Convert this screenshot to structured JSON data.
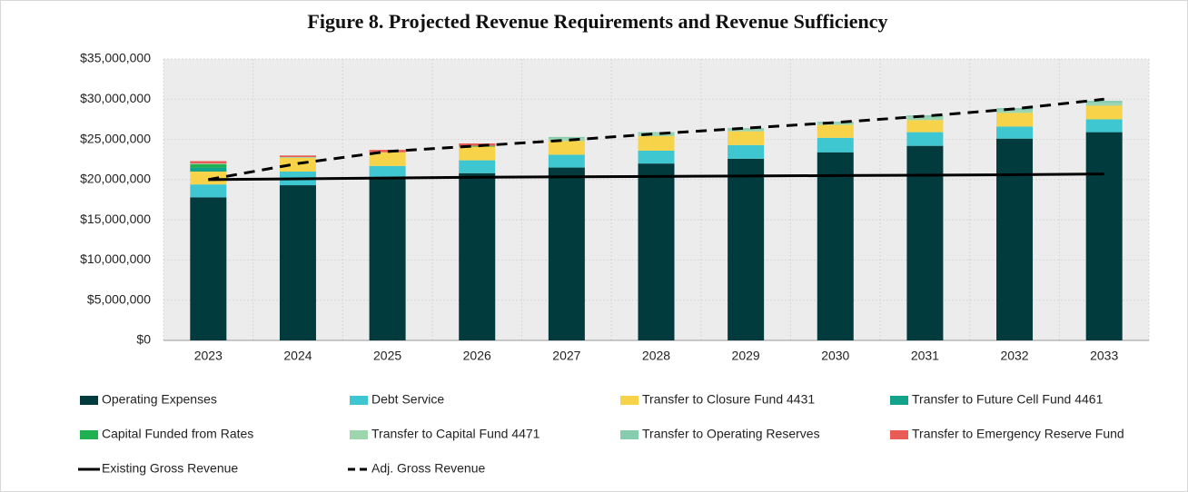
{
  "chart_data": {
    "type": "bar",
    "stacked": true,
    "title": "Figure 8. Projected Revenue Requirements and Revenue Sufficiency",
    "categories": [
      "2023",
      "2024",
      "2025",
      "2026",
      "2027",
      "2028",
      "2029",
      "2030",
      "2031",
      "2032",
      "2033"
    ],
    "ylim": [
      0,
      35000000
    ],
    "yticks": [
      {
        "value": 0,
        "label": "$0"
      },
      {
        "value": 5000000,
        "label": "$5,000,000"
      },
      {
        "value": 10000000,
        "label": "$10,000,000"
      },
      {
        "value": 15000000,
        "label": "$15,000,000"
      },
      {
        "value": 20000000,
        "label": "$20,000,000"
      },
      {
        "value": 25000000,
        "label": "$25,000,000"
      },
      {
        "value": 30000000,
        "label": "$30,000,000"
      },
      {
        "value": 35000000,
        "label": "$35,000,000"
      }
    ],
    "grid": true,
    "legend": "bottom",
    "series": [
      {
        "name": "Operating Expenses",
        "color": "#013b3e",
        "values": [
          17800000,
          19300000,
          20200000,
          20800000,
          21500000,
          22000000,
          22600000,
          23400000,
          24200000,
          25100000,
          25900000
        ]
      },
      {
        "name": "Debt Service",
        "color": "#3fc7d1",
        "values": [
          1600000,
          1700000,
          1500000,
          1600000,
          1600000,
          1600000,
          1700000,
          1800000,
          1700000,
          1500000,
          1600000
        ]
      },
      {
        "name": "Transfer to Closure Fund 4431",
        "color": "#f6d349",
        "values": [
          1600000,
          1700000,
          1700000,
          1700000,
          1700000,
          1800000,
          1700000,
          1600000,
          1500000,
          1700000,
          1700000
        ]
      },
      {
        "name": "Transfer to Future Cell Fund 4461",
        "color": "#12a38a",
        "values": [
          500000,
          0,
          0,
          0,
          0,
          0,
          0,
          0,
          0,
          0,
          0
        ]
      },
      {
        "name": "Capital Funded from Rates",
        "color": "#1fb04f",
        "values": [
          400000,
          0,
          0,
          100000,
          0,
          0,
          0,
          0,
          0,
          0,
          0
        ]
      },
      {
        "name": "Transfer to Capital Fund 4471",
        "color": "#9dd6ad",
        "values": [
          100000,
          100000,
          0,
          0,
          300000,
          300000,
          200000,
          200000,
          300000,
          300000,
          300000
        ]
      },
      {
        "name": "Transfer to Operating Reserves",
        "color": "#86cdb0",
        "values": [
          0,
          0,
          0,
          0,
          200000,
          200000,
          200000,
          200000,
          300000,
          300000,
          300000
        ]
      },
      {
        "name": "Transfer to Emergency Reserve Fund",
        "color": "#e85c55",
        "values": [
          300000,
          200000,
          300000,
          300000,
          0,
          0,
          0,
          0,
          0,
          0,
          0
        ]
      },
      {
        "name": "Existing Gross Revenue",
        "type": "line",
        "color": "#000000",
        "dashed": false,
        "values": [
          20000000,
          20100000,
          20200000,
          20300000,
          20350000,
          20400000,
          20450000,
          20500000,
          20550000,
          20600000,
          20700000
        ]
      },
      {
        "name": "Adj. Gross Revenue",
        "type": "line",
        "color": "#000000",
        "dashed": true,
        "values": [
          20000000,
          22000000,
          23500000,
          24200000,
          24900000,
          25700000,
          26400000,
          27100000,
          27900000,
          28800000,
          30000000
        ]
      }
    ]
  }
}
